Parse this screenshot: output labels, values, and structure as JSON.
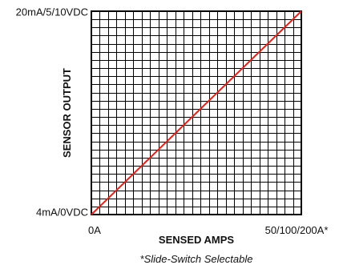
{
  "chart_data": {
    "type": "line",
    "xlabel": "SENSED AMPS",
    "ylabel": "SENSOR OUTPUT",
    "x_tick_labels": {
      "min": "0A",
      "max": "50/100/200A*"
    },
    "y_tick_labels": {
      "min": "4mA/0VDC",
      "max": "20mA/5/10VDC"
    },
    "x": [
      0,
      1
    ],
    "y": [
      0,
      1
    ],
    "xlim": [
      0,
      1
    ],
    "ylim": [
      0,
      1
    ],
    "grid": true,
    "grid_divisions": {
      "x": 25,
      "y": 25
    },
    "line_color": "#e2231a",
    "grid_color": "#000000",
    "footnote": "*Slide-Switch Selectable"
  }
}
